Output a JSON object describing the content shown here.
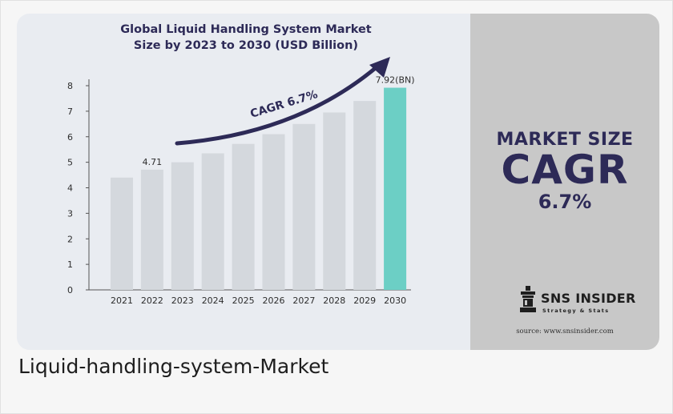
{
  "chart_data": {
    "type": "bar",
    "title_line1": "Global Liquid Handling System Market",
    "title_line2": "Size by 2023 to 2030 (USD Billion)",
    "categories": [
      "2021",
      "2022",
      "2023",
      "2024",
      "2025",
      "2026",
      "2027",
      "2028",
      "2029",
      "2030"
    ],
    "values": [
      4.4,
      4.71,
      5.0,
      5.35,
      5.72,
      6.1,
      6.5,
      6.95,
      7.4,
      7.92
    ],
    "data_labels": [
      {
        "index": 1,
        "text": "4.71"
      },
      {
        "index": 9,
        "text": "7.92(BN)"
      }
    ],
    "annotation": "CAGR 6.7%",
    "ylim": [
      0,
      8
    ],
    "yticks": [
      "0",
      "1",
      "2",
      "3",
      "4",
      "5",
      "6",
      "7",
      "8"
    ],
    "grid": false,
    "bar_color": "#d4d8dd",
    "highlight_color": "#6ccfc5",
    "highlight_index": 9
  },
  "side_panel": {
    "line1": "MARKET SIZE",
    "line2": "CAGR",
    "line3": "6.7%"
  },
  "brand": {
    "name": "SNS INSIDER",
    "tagline": "Strategy & Stats",
    "source": "source: www.snsinsider.com"
  },
  "caption": "Liquid-handling-system-Market",
  "colors": {
    "navy": "#2d2a57",
    "teal": "#6ccfc5",
    "bar": "#d4d8dd",
    "panel": "#c8c8c8"
  }
}
